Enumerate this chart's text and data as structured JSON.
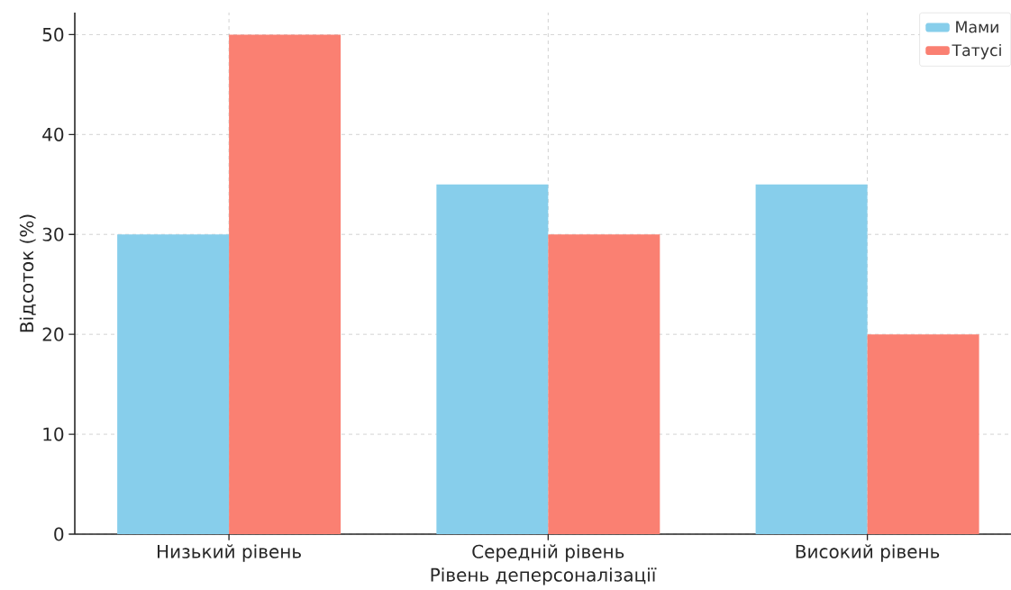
{
  "chart_data": {
    "type": "bar",
    "xlabel": "Рівень деперсоналізації",
    "ylabel": "Відсоток (%)",
    "categories": [
      "Низький рівень",
      "Середній рівень",
      "Високий рівень"
    ],
    "series": [
      {
        "name": "Мами",
        "color": "#87ceeb",
        "values": [
          30,
          35,
          35
        ]
      },
      {
        "name": "Татусі",
        "color": "#fa8072",
        "values": [
          50,
          30,
          20
        ]
      }
    ],
    "ylim": [
      0,
      52.2
    ],
    "yticks": [
      0,
      10,
      20,
      30,
      40,
      50
    ],
    "grid": true,
    "legend": "top right"
  }
}
